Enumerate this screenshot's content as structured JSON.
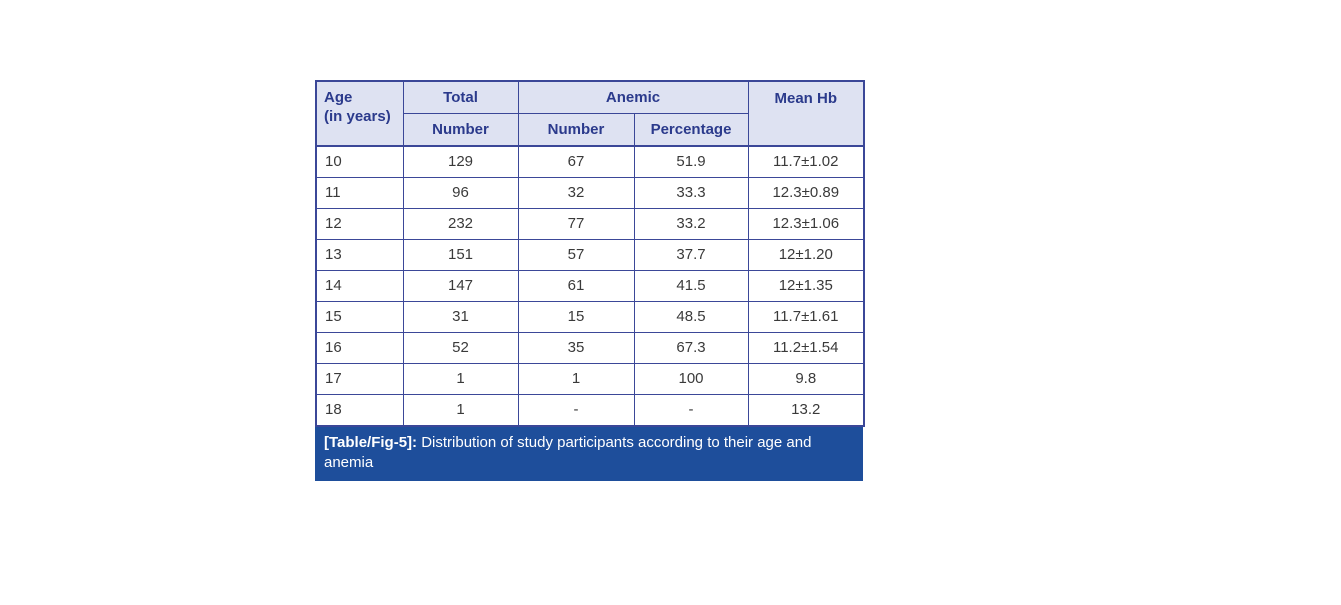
{
  "table": {
    "header": {
      "age_line1": "Age",
      "age_line2": "(in years)",
      "total": "Total",
      "anemic": "Anemic",
      "mean_hb": "Mean Hb",
      "total_sub": "Number",
      "anemic_number": "Number",
      "anemic_percentage": "Percentage"
    },
    "rows": [
      [
        "10",
        "129",
        "67",
        "51.9",
        "11.7±1.02"
      ],
      [
        "11",
        "96",
        "32",
        "33.3",
        "12.3±0.89"
      ],
      [
        "12",
        "232",
        "77",
        "33.2",
        "12.3±1.06"
      ],
      [
        "13",
        "151",
        "57",
        "37.7",
        "12±1.20"
      ],
      [
        "14",
        "147",
        "61",
        "41.5",
        "12±1.35"
      ],
      [
        "15",
        "31",
        "15",
        "48.5",
        "11.7±1.61"
      ],
      [
        "16",
        "52",
        "35",
        "67.3",
        "11.2±1.54"
      ],
      [
        "17",
        "1",
        "1",
        "100",
        "9.8"
      ],
      [
        "18",
        "1",
        "-",
        "-",
        "13.2"
      ]
    ]
  },
  "caption": {
    "label": "[Table/Fig-5]:",
    "text": " Distribution of study participants according to their age and anemia"
  },
  "colors": {
    "header_bg": "#dee2f2",
    "header_text": "#2b3a8c",
    "border": "#3b4798",
    "caption_bg": "#1e4e9b",
    "caption_text": "#ffffff",
    "body_text": "#3a3a3a"
  }
}
